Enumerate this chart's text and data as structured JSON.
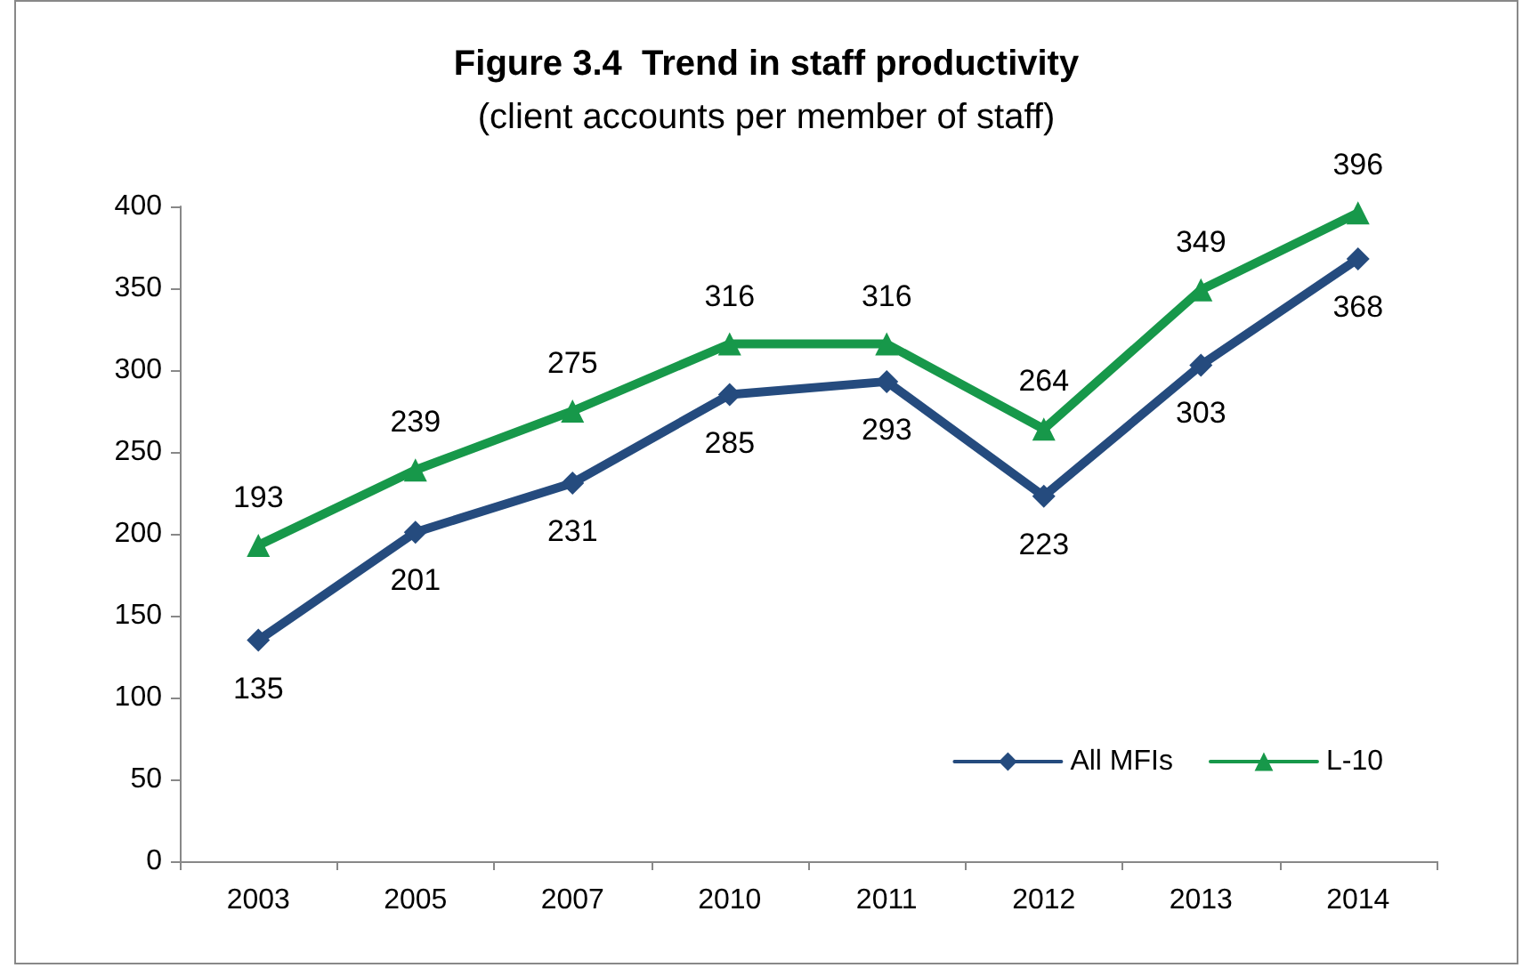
{
  "chart_data": {
    "type": "line",
    "title": "Figure 3.4  Trend in staff productivity",
    "subtitle": "(client accounts per member of staff)",
    "categories": [
      "2003",
      "2005",
      "2007",
      "2010",
      "2011",
      "2012",
      "2013",
      "2014"
    ],
    "series": [
      {
        "name": "All MFIs",
        "color": "#254b7e",
        "marker": "diamond",
        "values": [
          135,
          201,
          231,
          285,
          293,
          223,
          303,
          368
        ]
      },
      {
        "name": "L-10",
        "color": "#17984a",
        "marker": "triangle",
        "values": [
          193,
          239,
          275,
          316,
          316,
          264,
          349,
          396
        ]
      }
    ],
    "ylim": [
      0,
      400
    ],
    "yticks": [
      0,
      50,
      100,
      150,
      200,
      250,
      300,
      350,
      400
    ],
    "grid": false,
    "legend": "bottom right",
    "data_labels": true,
    "line_style": "solid"
  }
}
